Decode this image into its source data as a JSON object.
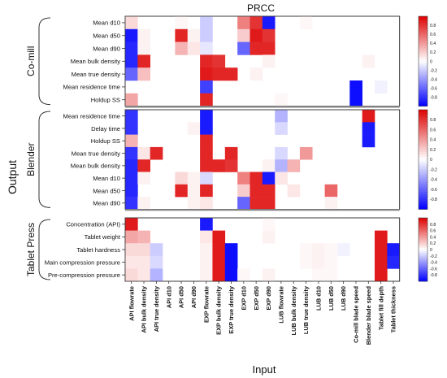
{
  "chart_data": {
    "type": "heatmap",
    "title": "PRCC",
    "xlabel": "Input",
    "ylabel": "Output",
    "inputs": [
      "API flowrate",
      "API bulk density",
      "API true density",
      "API d10",
      "API d50",
      "API d90",
      "EXP flowrate",
      "EXP bulk density",
      "EXP true density",
      "EXP d10",
      "EXP d50",
      "EXP d90",
      "LUB flowrate",
      "LUB bulk density",
      "LUB true density",
      "LUB d10",
      "LUB d50",
      "LUB d90",
      "Co-mill blade speed",
      "Blender blade speed",
      "Tablet fill depth",
      "Tablet thickness"
    ],
    "colormap": {
      "low": "#0000ff",
      "mid": "#ffffff",
      "high": "#dd0000"
    },
    "colorbar_ticks": [
      "0.8",
      "0.6",
      "0.4",
      "0.2",
      "0",
      "-0.2",
      "-0.4",
      "-0.6",
      "-0.8"
    ],
    "colorbar_range": [
      -1,
      1
    ],
    "panels": [
      {
        "name": "Co-mill",
        "rows": [
          "Mean d10",
          "Mean d50",
          "Mean d90",
          "Mean bulk density",
          "Mean true density",
          "Mean residence time",
          "Holdup SS"
        ],
        "values": [
          [
            0.15,
            0,
            0,
            0,
            0.03,
            0,
            -0.2,
            0,
            0,
            0.5,
            0.8,
            -0.9,
            0,
            0,
            0.03,
            0,
            0,
            0,
            0,
            0,
            0,
            0
          ],
          [
            -0.9,
            0.05,
            0,
            0,
            0.85,
            0.05,
            -0.2,
            0,
            0,
            0.2,
            0.9,
            0.8,
            0,
            0,
            0,
            0,
            0,
            0,
            0,
            0,
            0,
            0
          ],
          [
            -0.85,
            0.05,
            0,
            0,
            0.3,
            0.1,
            -0.1,
            0,
            0,
            -0.6,
            0.85,
            0.85,
            0,
            0,
            0,
            0,
            0,
            0,
            0,
            0,
            0,
            0
          ],
          [
            -0.85,
            0.85,
            0,
            0,
            0,
            0,
            0.85,
            0.8,
            0,
            0,
            0,
            0.05,
            0,
            0,
            0,
            0,
            0,
            0,
            0,
            0.05,
            0,
            0
          ],
          [
            -0.6,
            0.25,
            0,
            0,
            0,
            0,
            0.9,
            0.85,
            0.85,
            0,
            0.05,
            0,
            0,
            0,
            0,
            0,
            0,
            0,
            0,
            0,
            0,
            0
          ],
          [
            0,
            0,
            0,
            0,
            0,
            0,
            -0.75,
            0,
            0,
            0,
            0,
            0,
            0,
            0,
            0,
            0,
            0,
            0,
            -0.95,
            0,
            -0.05,
            0
          ],
          [
            0.35,
            0,
            0,
            0,
            0,
            0,
            0.85,
            0,
            0,
            0,
            0,
            0,
            0.03,
            0,
            0,
            0,
            0,
            0,
            -0.95,
            0,
            0,
            0
          ]
        ]
      },
      {
        "name": "Blender",
        "rows": [
          "Mean residence time",
          "Delay time",
          "Holdup SS",
          "Mean true density",
          "Mean bulk density",
          "Mean d10",
          "Mean d50",
          "Mean d90"
        ],
        "values": [
          [
            -0.8,
            0,
            0,
            0,
            0,
            0,
            -0.9,
            0,
            0,
            0,
            0,
            0,
            -0.3,
            0,
            0,
            0,
            0,
            0,
            0,
            0.9,
            0,
            0
          ],
          [
            -0.8,
            0,
            0,
            0,
            0,
            0.05,
            -0.9,
            0,
            0,
            0,
            0,
            0,
            -0.15,
            0,
            0,
            0,
            0,
            0,
            0,
            -0.9,
            0,
            0
          ],
          [
            0.3,
            0,
            0,
            0,
            0,
            0,
            0.85,
            0,
            0,
            0,
            0,
            0,
            0,
            0,
            0,
            0,
            0,
            0,
            0,
            -0.9,
            0,
            0
          ],
          [
            -0.8,
            0.1,
            0.85,
            0,
            0,
            0,
            0.85,
            0,
            0.85,
            0,
            0,
            0,
            -0.15,
            0,
            0.4,
            0,
            0,
            0,
            0,
            0,
            0,
            0
          ],
          [
            -0.85,
            0.85,
            0,
            0,
            0,
            0,
            0.85,
            0.85,
            0.8,
            0,
            0,
            0.05,
            -0.3,
            0.3,
            0,
            0,
            0,
            0,
            0,
            0,
            0,
            0
          ],
          [
            -0.85,
            0.05,
            0,
            0,
            0.15,
            0.05,
            -0.15,
            0,
            0,
            0.5,
            0.85,
            -0.9,
            0.1,
            0,
            0,
            0,
            0,
            0,
            0,
            0,
            0,
            0
          ],
          [
            -0.85,
            0,
            0,
            0,
            0.85,
            0.05,
            0.85,
            0,
            0,
            0.2,
            0.85,
            0.85,
            0,
            0.1,
            0,
            0,
            0.6,
            0,
            0,
            0,
            0,
            0
          ],
          [
            -0.8,
            0.05,
            0,
            0,
            0,
            0.05,
            0.1,
            0,
            0,
            -0.6,
            0.85,
            0.85,
            0,
            0,
            0,
            0,
            0.05,
            0,
            0,
            0,
            0,
            0
          ]
        ]
      },
      {
        "name": "Tablet Press",
        "rows": [
          "Concentration (API)",
          "Tablet weight",
          "Tablet hardness",
          "Main compression pressure",
          "Pre-compression pressure"
        ],
        "values": [
          [
            0.9,
            0,
            0,
            0,
            0,
            0,
            -0.9,
            0,
            0,
            0,
            0,
            0.03,
            0,
            0,
            0,
            0,
            0,
            0,
            0,
            0,
            0,
            0
          ],
          [
            0.35,
            0.3,
            0,
            0,
            0,
            0,
            0.1,
            0.9,
            0,
            0,
            0,
            0.05,
            0,
            0,
            0,
            0,
            0,
            0,
            0,
            0,
            0.9,
            0
          ],
          [
            0.15,
            0.15,
            -0.2,
            0,
            0,
            0,
            0.05,
            0.9,
            -0.95,
            0,
            0,
            0,
            0,
            0,
            0.03,
            0.05,
            0.03,
            -0.05,
            0,
            0,
            0.9,
            -0.9
          ],
          [
            0.1,
            0.1,
            -0.15,
            0,
            0,
            0,
            0.05,
            0.9,
            -0.95,
            0,
            0,
            0,
            0,
            0,
            0.03,
            0.05,
            0.03,
            0,
            0,
            0,
            0.9,
            -0.85
          ],
          [
            0.15,
            0.1,
            -0.3,
            0,
            0,
            0,
            0.05,
            0.9,
            -0.95,
            0.03,
            0,
            0.05,
            0,
            0,
            0,
            0.03,
            0.03,
            0,
            0,
            0,
            0.9,
            0
          ]
        ]
      }
    ]
  }
}
